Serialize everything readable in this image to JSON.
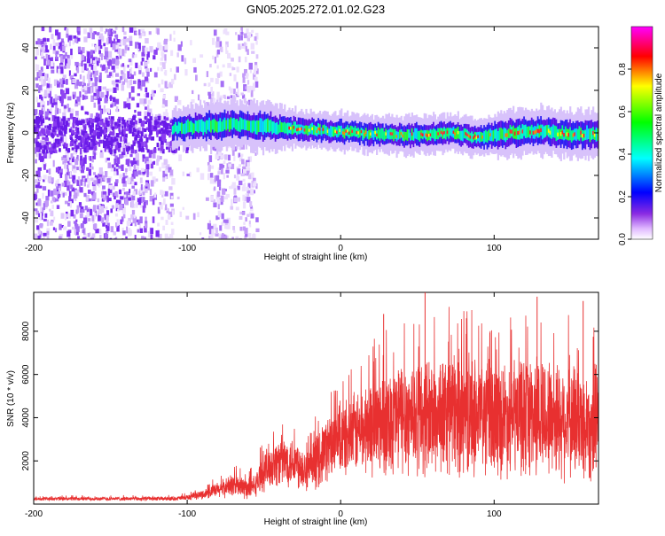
{
  "chart_data": [
    {
      "type": "heatmap",
      "title": "GN05.2025.272.01.02.G23",
      "xlabel": "Height of straight line (km)",
      "ylabel": "Frequency (Hz)",
      "xlim": [
        -200,
        168
      ],
      "ylim": [
        -50,
        50
      ],
      "x_ticks": [
        -200,
        -100,
        0,
        100
      ],
      "x_tick_labels": [
        "-200",
        "-100",
        "0",
        "100"
      ],
      "y_ticks": [
        -40,
        -20,
        0,
        20,
        40
      ],
      "y_tick_labels": [
        "-40",
        "-20",
        "0",
        "20",
        "40"
      ],
      "signal_track": {
        "x": [
          -110,
          -90,
          -70,
          -50,
          -30,
          -10,
          10,
          30,
          50,
          70,
          90,
          110,
          130,
          150,
          168
        ],
        "freq_hz": [
          2,
          3,
          4,
          3,
          2,
          1,
          0,
          -1,
          -1,
          0,
          -2,
          0,
          1,
          -1,
          0
        ],
        "half_width_hz": [
          4,
          5,
          5,
          5,
          4,
          4,
          4,
          4,
          4,
          4,
          4,
          5,
          5,
          5,
          5
        ]
      },
      "noise_region_x": [
        -200,
        -55
      ],
      "colorbar": {
        "label": "Normalized spectral amplitude",
        "range": [
          0,
          1
        ],
        "ticks": [
          0.0,
          0.2,
          0.4,
          0.6,
          0.8
        ],
        "tick_labels": [
          "0.0",
          "0.2",
          "0.4",
          "0.6",
          "0.8"
        ]
      }
    },
    {
      "type": "line",
      "xlabel": "Height of straight line (km)",
      "ylabel": "SNR (10 * v/v)",
      "xlim": [
        -200,
        168
      ],
      "ylim": [
        0,
        9800
      ],
      "x_ticks": [
        -200,
        -100,
        0,
        100
      ],
      "x_tick_labels": [
        "-200",
        "-100",
        "0",
        "100"
      ],
      "y_ticks": [
        2000,
        4000,
        6000,
        8000
      ],
      "y_tick_labels": [
        "2000",
        "4000",
        "6000",
        "8000"
      ],
      "series": [
        {
          "name": "SNR",
          "color": "#e83030",
          "envelope_x": [
            -200,
            -110,
            -100,
            -90,
            -80,
            -70,
            -60,
            -55,
            -50,
            -40,
            -30,
            -20,
            -10,
            0,
            10,
            20,
            30,
            40,
            50,
            60,
            70,
            80,
            90,
            100,
            110,
            120,
            130,
            140,
            150,
            160,
            168
          ],
          "envelope_mean": [
            250,
            250,
            300,
            450,
            650,
            900,
            700,
            900,
            1600,
            2000,
            2000,
            1500,
            2600,
            2900,
            3300,
            3600,
            3900,
            4100,
            4100,
            4100,
            4200,
            4200,
            4100,
            4000,
            4000,
            4200,
            4100,
            4000,
            3900,
            3700,
            3700
          ],
          "envelope_amp": [
            80,
            90,
            120,
            200,
            350,
            500,
            500,
            500,
            900,
            1100,
            1100,
            1000,
            1400,
            1600,
            1800,
            2100,
            2400,
            2600,
            2600,
            2600,
            2700,
            2700,
            2600,
            2600,
            2500,
            2800,
            2700,
            2600,
            2600,
            2500,
            2500
          ],
          "peaks": [
            {
              "x": 55,
              "y": 9800
            },
            {
              "x": 128,
              "y": 9600
            },
            {
              "x": 158,
              "y": 9400
            },
            {
              "x": 28,
              "y": 8800
            },
            {
              "x": 82,
              "y": 8600
            }
          ]
        }
      ]
    }
  ]
}
